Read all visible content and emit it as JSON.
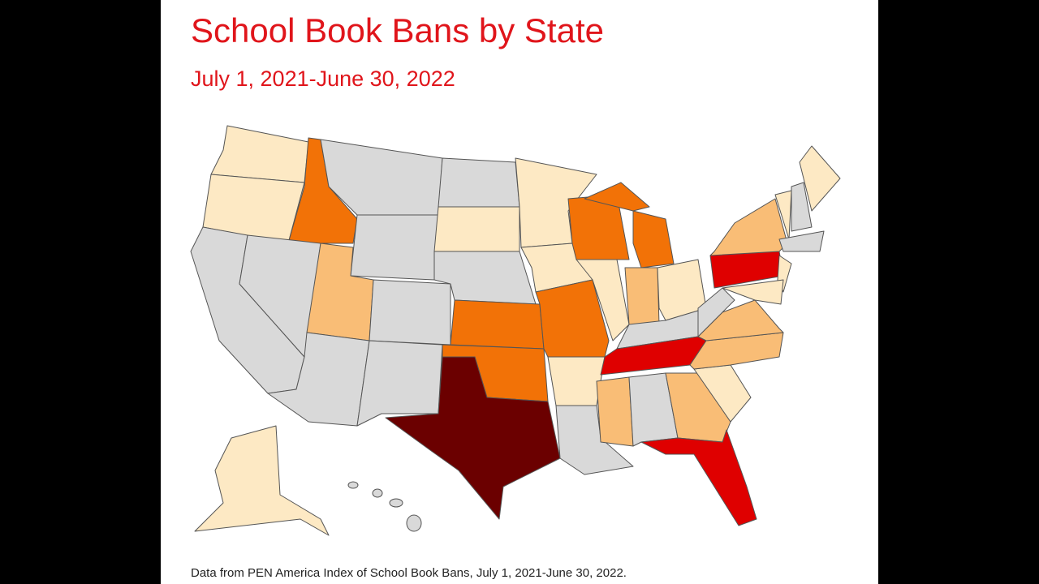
{
  "header": {
    "title": "School Book Bans by State",
    "subtitle": "July 1, 2021-June 30, 2022"
  },
  "footer": {
    "source": "Data from PEN America Index of School Book Bans, July 1, 2021-June 30, 2022."
  }
}
